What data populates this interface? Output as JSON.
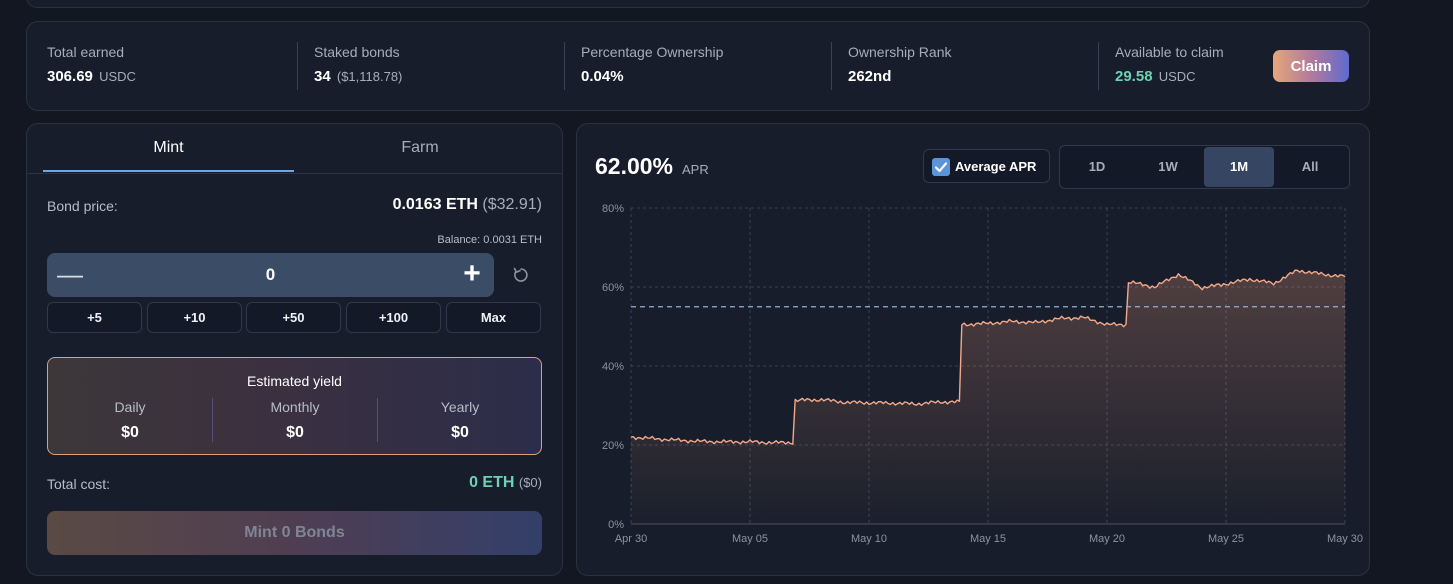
{
  "stats": {
    "total_earned": {
      "label": "Total earned",
      "value": "306.69",
      "unit": "USDC"
    },
    "staked_bonds": {
      "label": "Staked bonds",
      "value": "34",
      "unit": "($1,118.78)"
    },
    "ownership": {
      "label": "Percentage Ownership",
      "value": "0.04%"
    },
    "rank": {
      "label": "Ownership Rank",
      "value": "262nd"
    },
    "claimable": {
      "label": "Available to claim",
      "value": "29.58",
      "unit": "USDC"
    },
    "claim_label": "Claim"
  },
  "mint": {
    "tabs": [
      {
        "label": "Mint",
        "active": true
      },
      {
        "label": "Farm",
        "active": false
      }
    ],
    "bond_price_label": "Bond price:",
    "bond_price_eth": "0.0163 ETH",
    "bond_price_usd": "($32.91)",
    "balance": "Balance: 0.0031 ETH",
    "quantity": "0",
    "quick_amounts": [
      "+5",
      "+10",
      "+50",
      "+100",
      "Max"
    ],
    "yield": {
      "title": "Estimated yield",
      "daily_label": "Daily",
      "daily_value": "$0",
      "monthly_label": "Monthly",
      "monthly_value": "$0",
      "yearly_label": "Yearly",
      "yearly_value": "$0"
    },
    "total_cost_label": "Total cost:",
    "total_cost_eth": "0 ETH",
    "total_cost_usd": "($0)",
    "mint_button": "Mint 0 Bonds"
  },
  "apr_panel": {
    "apr_value": "62.00%",
    "apr_label": "APR",
    "average_toggle": {
      "label": "Average APR",
      "checked": true
    },
    "ranges": [
      {
        "label": "1D",
        "active": false
      },
      {
        "label": "1W",
        "active": false
      },
      {
        "label": "1M",
        "active": true
      },
      {
        "label": "All",
        "active": false
      }
    ]
  },
  "chart_data": {
    "type": "area",
    "x": [
      "Apr 30",
      "May 01",
      "May 02",
      "May 03",
      "May 04",
      "May 05",
      "May 06",
      "May 07",
      "May 08",
      "May 09",
      "May 10",
      "May 11",
      "May 12",
      "May 13",
      "May 14",
      "May 15",
      "May 16",
      "May 17",
      "May 18",
      "May 19",
      "May 20",
      "May 21",
      "May 22",
      "May 23",
      "May 24",
      "May 25",
      "May 26",
      "May 27",
      "May 28",
      "May 29",
      "May 30"
    ],
    "series": [
      {
        "values": [
          22.0,
          21.6,
          21.2,
          20.9,
          20.8,
          20.8,
          20.6,
          31.3,
          31.5,
          30.8,
          30.7,
          30.6,
          30.4,
          30.9,
          50.5,
          50.8,
          51.3,
          51.0,
          52.0,
          52.3,
          50.5,
          61.2,
          60.0,
          63.2,
          59.8,
          60.8,
          62.0,
          60.9,
          64.2,
          63.3,
          62.6
        ]
      }
    ],
    "average_line": 55.0,
    "xticks": [
      "Apr 30",
      "May 05",
      "May 10",
      "May 15",
      "May 20",
      "May 25",
      "May 30"
    ],
    "yticks": [
      "0%",
      "20%",
      "40%",
      "60%",
      "80%"
    ],
    "ylim": [
      0,
      80
    ],
    "grid": true,
    "line_color": "#f2a98a"
  }
}
